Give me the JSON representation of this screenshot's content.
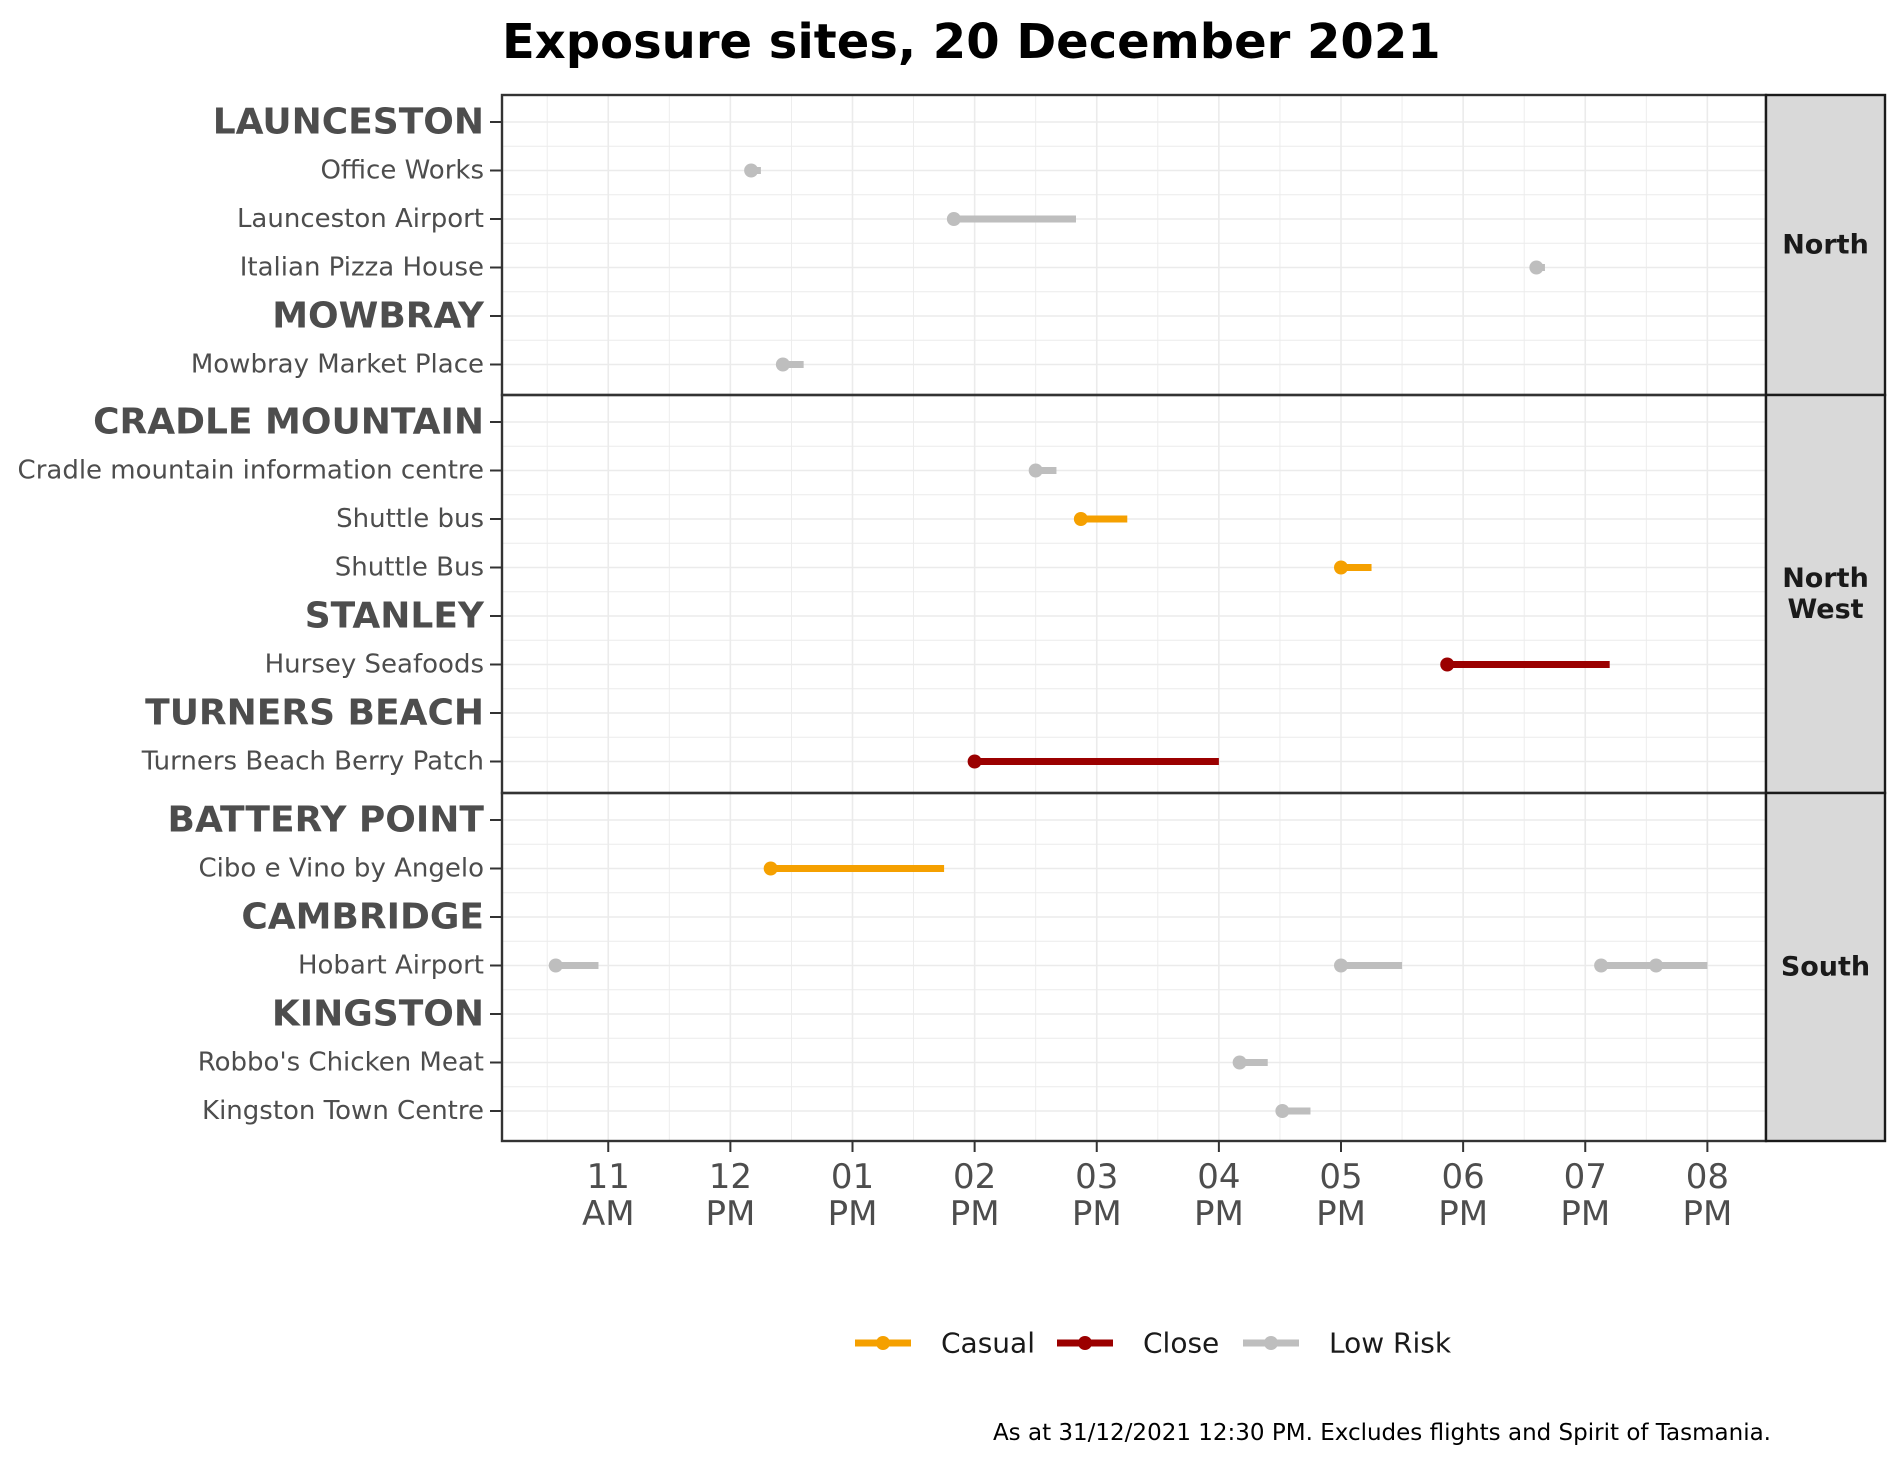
{
  "title": "Exposure sites, 20 December 2021",
  "caption": "As at 31/12/2021 12:30 PM. Excludes flights and Spirit of Tasmania.",
  "colors": {
    "Casual": "#F5A000",
    "Close": "#9B0000",
    "Low Risk": "#BEBEBE",
    "grid": "#EBEBEB",
    "axis_text": "#4D4D4D",
    "strip_bg": "#D9D9D9"
  },
  "chart_data": {
    "type": "range",
    "x_unit": "hours (24h clock)",
    "xlim": [
      10.13,
      20.48
    ],
    "x_ticks": [
      {
        "value": 11,
        "label": [
          "11",
          "AM"
        ]
      },
      {
        "value": 12,
        "label": [
          "12",
          "PM"
        ]
      },
      {
        "value": 13,
        "label": [
          "01",
          "PM"
        ]
      },
      {
        "value": 14,
        "label": [
          "02",
          "PM"
        ]
      },
      {
        "value": 15,
        "label": [
          "03",
          "PM"
        ]
      },
      {
        "value": 16,
        "label": [
          "04",
          "PM"
        ]
      },
      {
        "value": 17,
        "label": [
          "05",
          "PM"
        ]
      },
      {
        "value": 18,
        "label": [
          "06",
          "PM"
        ]
      },
      {
        "value": 19,
        "label": [
          "07",
          "PM"
        ]
      },
      {
        "value": 20,
        "label": [
          "08",
          "PM"
        ]
      }
    ],
    "legend": {
      "position": "bottom",
      "entries": [
        "Casual",
        "Close",
        "Low Risk"
      ]
    },
    "panels": [
      {
        "region": [
          "North"
        ],
        "rows": [
          {
            "label": "LAUNCESTON",
            "heading": true,
            "exposures": []
          },
          {
            "label": "Office Works",
            "heading": false,
            "exposures": [
              {
                "start": 12.17,
                "end": 12.25,
                "risk": "Low Risk"
              }
            ]
          },
          {
            "label": "Launceston Airport",
            "heading": false,
            "exposures": [
              {
                "start": 13.83,
                "end": 14.83,
                "risk": "Low Risk"
              }
            ]
          },
          {
            "label": "Italian Pizza House",
            "heading": false,
            "exposures": [
              {
                "start": 18.6,
                "end": 18.67,
                "risk": "Low Risk"
              }
            ]
          },
          {
            "label": "MOWBRAY",
            "heading": true,
            "exposures": []
          },
          {
            "label": "Mowbray Market Place",
            "heading": false,
            "exposures": [
              {
                "start": 12.43,
                "end": 12.6,
                "risk": "Low Risk"
              }
            ]
          }
        ]
      },
      {
        "region": [
          "North",
          "West"
        ],
        "rows": [
          {
            "label": "CRADLE MOUNTAIN",
            "heading": true,
            "exposures": []
          },
          {
            "label": "Cradle mountain information centre",
            "heading": false,
            "exposures": [
              {
                "start": 14.5,
                "end": 14.67,
                "risk": "Low Risk"
              }
            ]
          },
          {
            "label": "Shuttle bus",
            "heading": false,
            "exposures": [
              {
                "start": 14.87,
                "end": 15.25,
                "risk": "Casual"
              }
            ]
          },
          {
            "label": "Shuttle Bus",
            "heading": false,
            "exposures": [
              {
                "start": 17.0,
                "end": 17.25,
                "risk": "Casual"
              }
            ]
          },
          {
            "label": "STANLEY",
            "heading": true,
            "exposures": []
          },
          {
            "label": "Hursey Seafoods",
            "heading": false,
            "exposures": [
              {
                "start": 17.87,
                "end": 19.2,
                "risk": "Close"
              }
            ]
          },
          {
            "label": "TURNERS BEACH",
            "heading": true,
            "exposures": []
          },
          {
            "label": "Turners Beach Berry Patch",
            "heading": false,
            "exposures": [
              {
                "start": 14.0,
                "end": 16.0,
                "risk": "Close"
              }
            ]
          }
        ]
      },
      {
        "region": [
          "South"
        ],
        "rows": [
          {
            "label": "BATTERY POINT",
            "heading": true,
            "exposures": []
          },
          {
            "label": "Cibo e Vino by Angelo",
            "heading": false,
            "exposures": [
              {
                "start": 12.33,
                "end": 13.75,
                "risk": "Casual"
              }
            ]
          },
          {
            "label": "CAMBRIDGE",
            "heading": true,
            "exposures": []
          },
          {
            "label": "Hobart Airport",
            "heading": false,
            "exposures": [
              {
                "start": 10.57,
                "end": 10.92,
                "risk": "Low Risk"
              },
              {
                "start": 17.0,
                "end": 17.5,
                "risk": "Low Risk"
              },
              {
                "start": 19.13,
                "end": 20.0,
                "risk": "Low Risk"
              },
              {
                "start": 19.58,
                "end": 19.58,
                "risk": "Low Risk"
              }
            ]
          },
          {
            "label": "KINGSTON",
            "heading": true,
            "exposures": []
          },
          {
            "label": "Robbo's Chicken Meat",
            "heading": false,
            "exposures": [
              {
                "start": 16.17,
                "end": 16.4,
                "risk": "Low Risk"
              }
            ]
          },
          {
            "label": "Kingston Town Centre",
            "heading": false,
            "exposures": [
              {
                "start": 16.52,
                "end": 16.75,
                "risk": "Low Risk"
              }
            ]
          }
        ]
      }
    ]
  }
}
